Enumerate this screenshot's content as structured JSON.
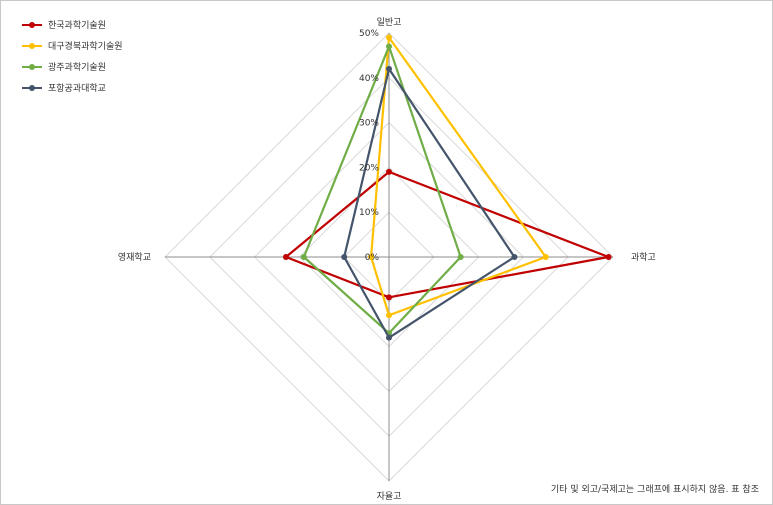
{
  "chart_data": {
    "type": "radar",
    "axes": [
      "일반고",
      "과학고",
      "자율고",
      "영재학교"
    ],
    "ticks": [
      "0%",
      "10%",
      "20%",
      "30%",
      "40%",
      "50%"
    ],
    "rmax": 50,
    "grid": true,
    "legend_position": "top-left",
    "series": [
      {
        "name": "한국과학기술원",
        "color": "#c00000",
        "values": [
          19,
          49,
          9,
          23
        ]
      },
      {
        "name": "대구경북과학기술원",
        "color": "#ffc000",
        "values": [
          49,
          35,
          13,
          4
        ]
      },
      {
        "name": "광주과학기술원",
        "color": "#70ad47",
        "values": [
          47,
          16,
          17,
          19
        ]
      },
      {
        "name": "포항공과대학교",
        "color": "#44546a",
        "values": [
          42,
          28,
          18,
          10
        ]
      }
    ]
  },
  "footnote": "기타 및 외고/국제고는 그래프에 표시하지 않음. 표 참조"
}
